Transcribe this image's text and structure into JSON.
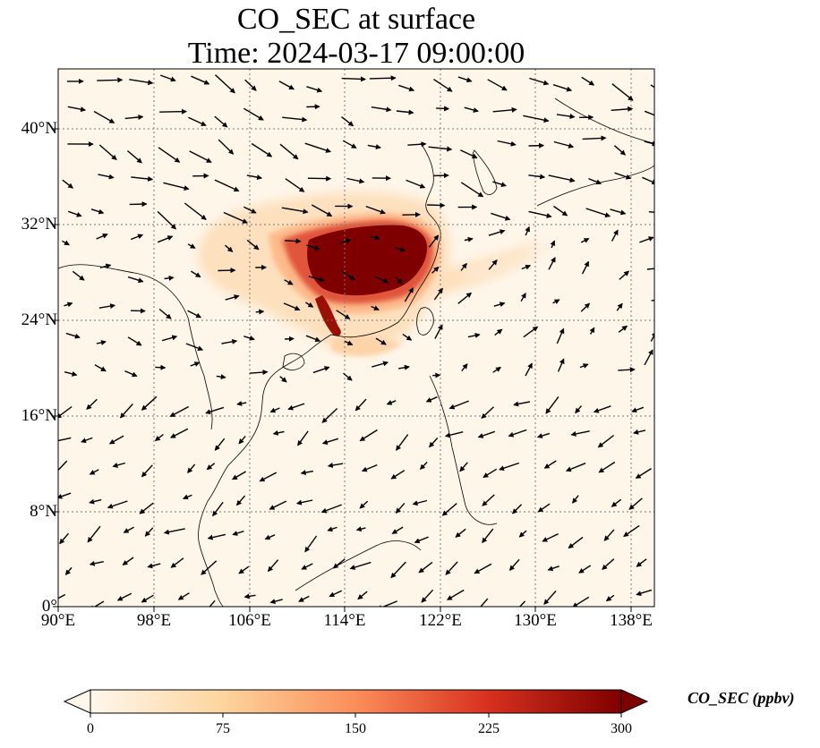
{
  "title": {
    "line1": "CO_SEC at surface",
    "line2": "Time: 2024-03-17 09:00:00"
  },
  "map": {
    "variable": "CO_SEC",
    "level": "surface",
    "lon_range": [
      90,
      140
    ],
    "lat_range": [
      0,
      45
    ],
    "x_ticks": [
      "90°E",
      "98°E",
      "106°E",
      "114°E",
      "122°E",
      "130°E",
      "138°E"
    ],
    "y_ticks": [
      "0°",
      "8°N",
      "16°N",
      "24°N",
      "32°N",
      "40°N"
    ],
    "gridlines": "dotted",
    "wind_vectors": "black arrows",
    "plume_region": "East China, ~110–121°E, 26–31°N (values ≥ 300 ppbv)"
  },
  "colorbar": {
    "label": "CO_SEC (ppbv)",
    "ticks": [
      "0",
      "75",
      "150",
      "225",
      "300"
    ],
    "min": 0,
    "max": 300,
    "extend": "both",
    "colormap": "OrRd",
    "colors": [
      "#fff7ec",
      "#fdd49e",
      "#fc8d59",
      "#d7301f",
      "#7f0000"
    ]
  }
}
